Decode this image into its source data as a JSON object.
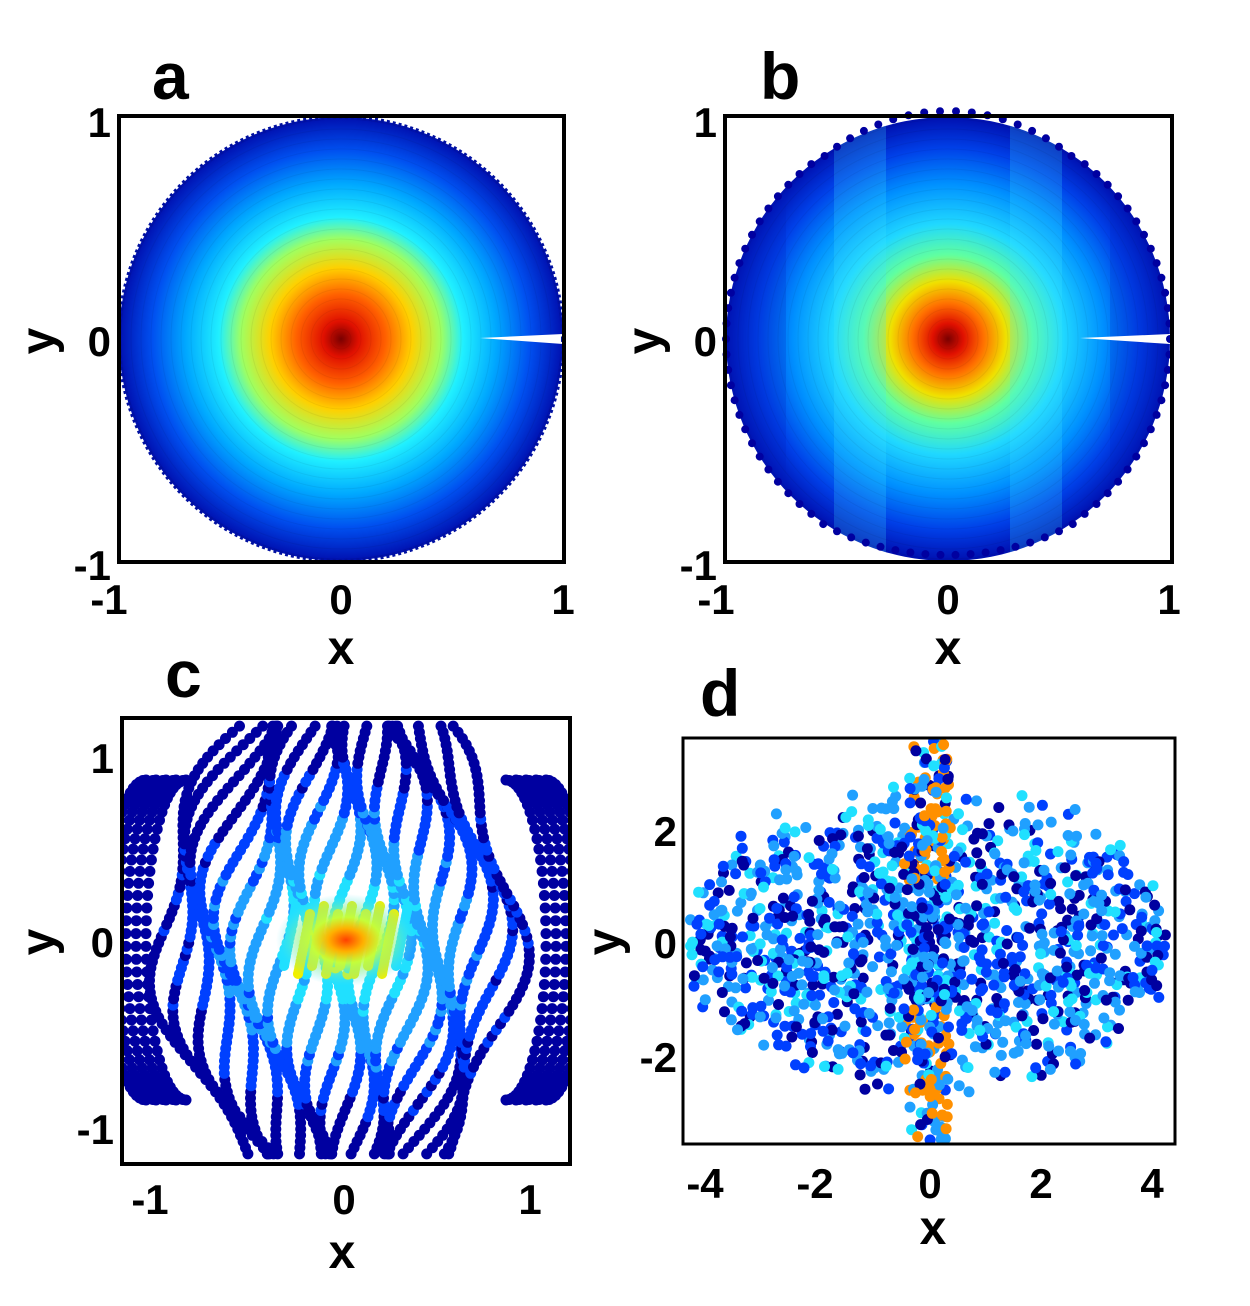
{
  "chart_data": [
    {
      "panel": "a",
      "type": "scatter",
      "xlabel": "x",
      "ylabel": "y",
      "xlim": [
        -1,
        1
      ],
      "ylim": [
        -1,
        1
      ],
      "xticks": [
        "-1",
        "0",
        "1"
      ],
      "yticks": [
        "-1",
        "0",
        "1"
      ],
      "colormap": "jet",
      "description_values": {
        "center_value": 1.0,
        "edge_value": 0.0
      },
      "grid": false
    },
    {
      "panel": "b",
      "type": "scatter",
      "xlabel": "x",
      "ylabel": "y",
      "xlim": [
        -1,
        1
      ],
      "ylim": [
        -1,
        1
      ],
      "xticks": [
        "-1",
        "0",
        "1"
      ],
      "yticks": [
        "-1",
        "0",
        "1"
      ],
      "colormap": "jet",
      "grid": false
    },
    {
      "panel": "c",
      "type": "scatter",
      "xlabel": "x",
      "ylabel": "y",
      "xlim": [
        -1.2,
        1.2
      ],
      "ylim": [
        -1.2,
        1.2
      ],
      "xticks": [
        "-1",
        "0",
        "1"
      ],
      "yticks": [
        "-1",
        "0",
        "1"
      ],
      "colormap": "jet",
      "grid": false
    },
    {
      "panel": "d",
      "type": "scatter",
      "xlabel": "x",
      "ylabel": "y",
      "xlim": [
        -4.4,
        4.4
      ],
      "ylim": [
        -3.6,
        3.6
      ],
      "xticks": [
        "-4",
        "-2",
        "0",
        "2",
        "4"
      ],
      "yticks": [
        "-2",
        "0",
        "2"
      ],
      "colormap": "jet",
      "grid": false
    }
  ],
  "panels": [
    {
      "letter": "a",
      "xlabel": "x",
      "ylabel": "y",
      "xticks": [
        "-1",
        "0",
        "1"
      ],
      "yticks": [
        "1",
        "0",
        "-1"
      ]
    },
    {
      "letter": "b",
      "xlabel": "x",
      "ylabel": "y",
      "xticks": [
        "-1",
        "0",
        "1"
      ],
      "yticks": [
        "1",
        "0",
        "-1"
      ]
    },
    {
      "letter": "c",
      "xlabel": "x",
      "ylabel": "y",
      "xticks": [
        "-1",
        "0",
        "1"
      ],
      "yticks": [
        "1",
        "0",
        "-1"
      ]
    },
    {
      "letter": "d",
      "xlabel": "x",
      "ylabel": "y",
      "xticks": [
        "-4",
        "-2",
        "0",
        "2",
        "4"
      ],
      "yticks": [
        "2",
        "0",
        "-2"
      ]
    }
  ],
  "colors": {
    "jet_dark_red": "#800000",
    "jet_red": "#ff2000",
    "jet_orange": "#ff9000",
    "jet_yellow": "#f0f000",
    "jet_cyan": "#20e0ff",
    "jet_lightblue": "#20a0ff",
    "jet_blue": "#0040ff",
    "jet_dark_blue": "#0000a0"
  }
}
